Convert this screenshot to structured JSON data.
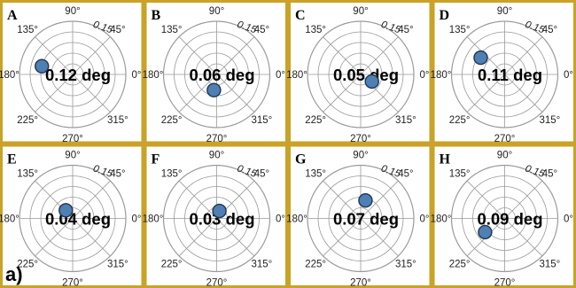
{
  "figure": {
    "label": "a)"
  },
  "style": {
    "panel_border": "#c9a227",
    "grid": "#9a9a9a",
    "marker_fill": "#4f7fb3",
    "marker_stroke": "#1f3550"
  },
  "polar_axes": {
    "angle_ticks": [
      "0°",
      "45°",
      "90°",
      "135°",
      "180°",
      "225°",
      "270°",
      "315°"
    ],
    "radial_tick": "0.15",
    "rmax": 0.2
  },
  "chart_data": [
    {
      "type": "scatter",
      "panel": "A",
      "annotation": "0.12 deg",
      "points": [
        {
          "theta_deg": 165,
          "r": 0.12
        }
      ]
    },
    {
      "type": "scatter",
      "panel": "B",
      "annotation": "0.06 deg",
      "points": [
        {
          "theta_deg": 260,
          "r": 0.06
        }
      ]
    },
    {
      "type": "scatter",
      "panel": "C",
      "annotation": "0.05 deg",
      "points": [
        {
          "theta_deg": 328,
          "r": 0.05
        }
      ]
    },
    {
      "type": "scatter",
      "panel": "D",
      "annotation": "0.11 deg",
      "points": [
        {
          "theta_deg": 145,
          "r": 0.11
        }
      ]
    },
    {
      "type": "scatter",
      "panel": "E",
      "annotation": "0.04 deg",
      "points": [
        {
          "theta_deg": 130,
          "r": 0.04
        }
      ]
    },
    {
      "type": "scatter",
      "panel": "F",
      "annotation": "0.03 deg",
      "points": [
        {
          "theta_deg": 70,
          "r": 0.03
        }
      ]
    },
    {
      "type": "scatter",
      "panel": "G",
      "annotation": "0.07 deg",
      "points": [
        {
          "theta_deg": 75,
          "r": 0.07
        }
      ]
    },
    {
      "type": "scatter",
      "panel": "H",
      "annotation": "0.09 deg",
      "points": [
        {
          "theta_deg": 215,
          "r": 0.09
        }
      ]
    }
  ]
}
